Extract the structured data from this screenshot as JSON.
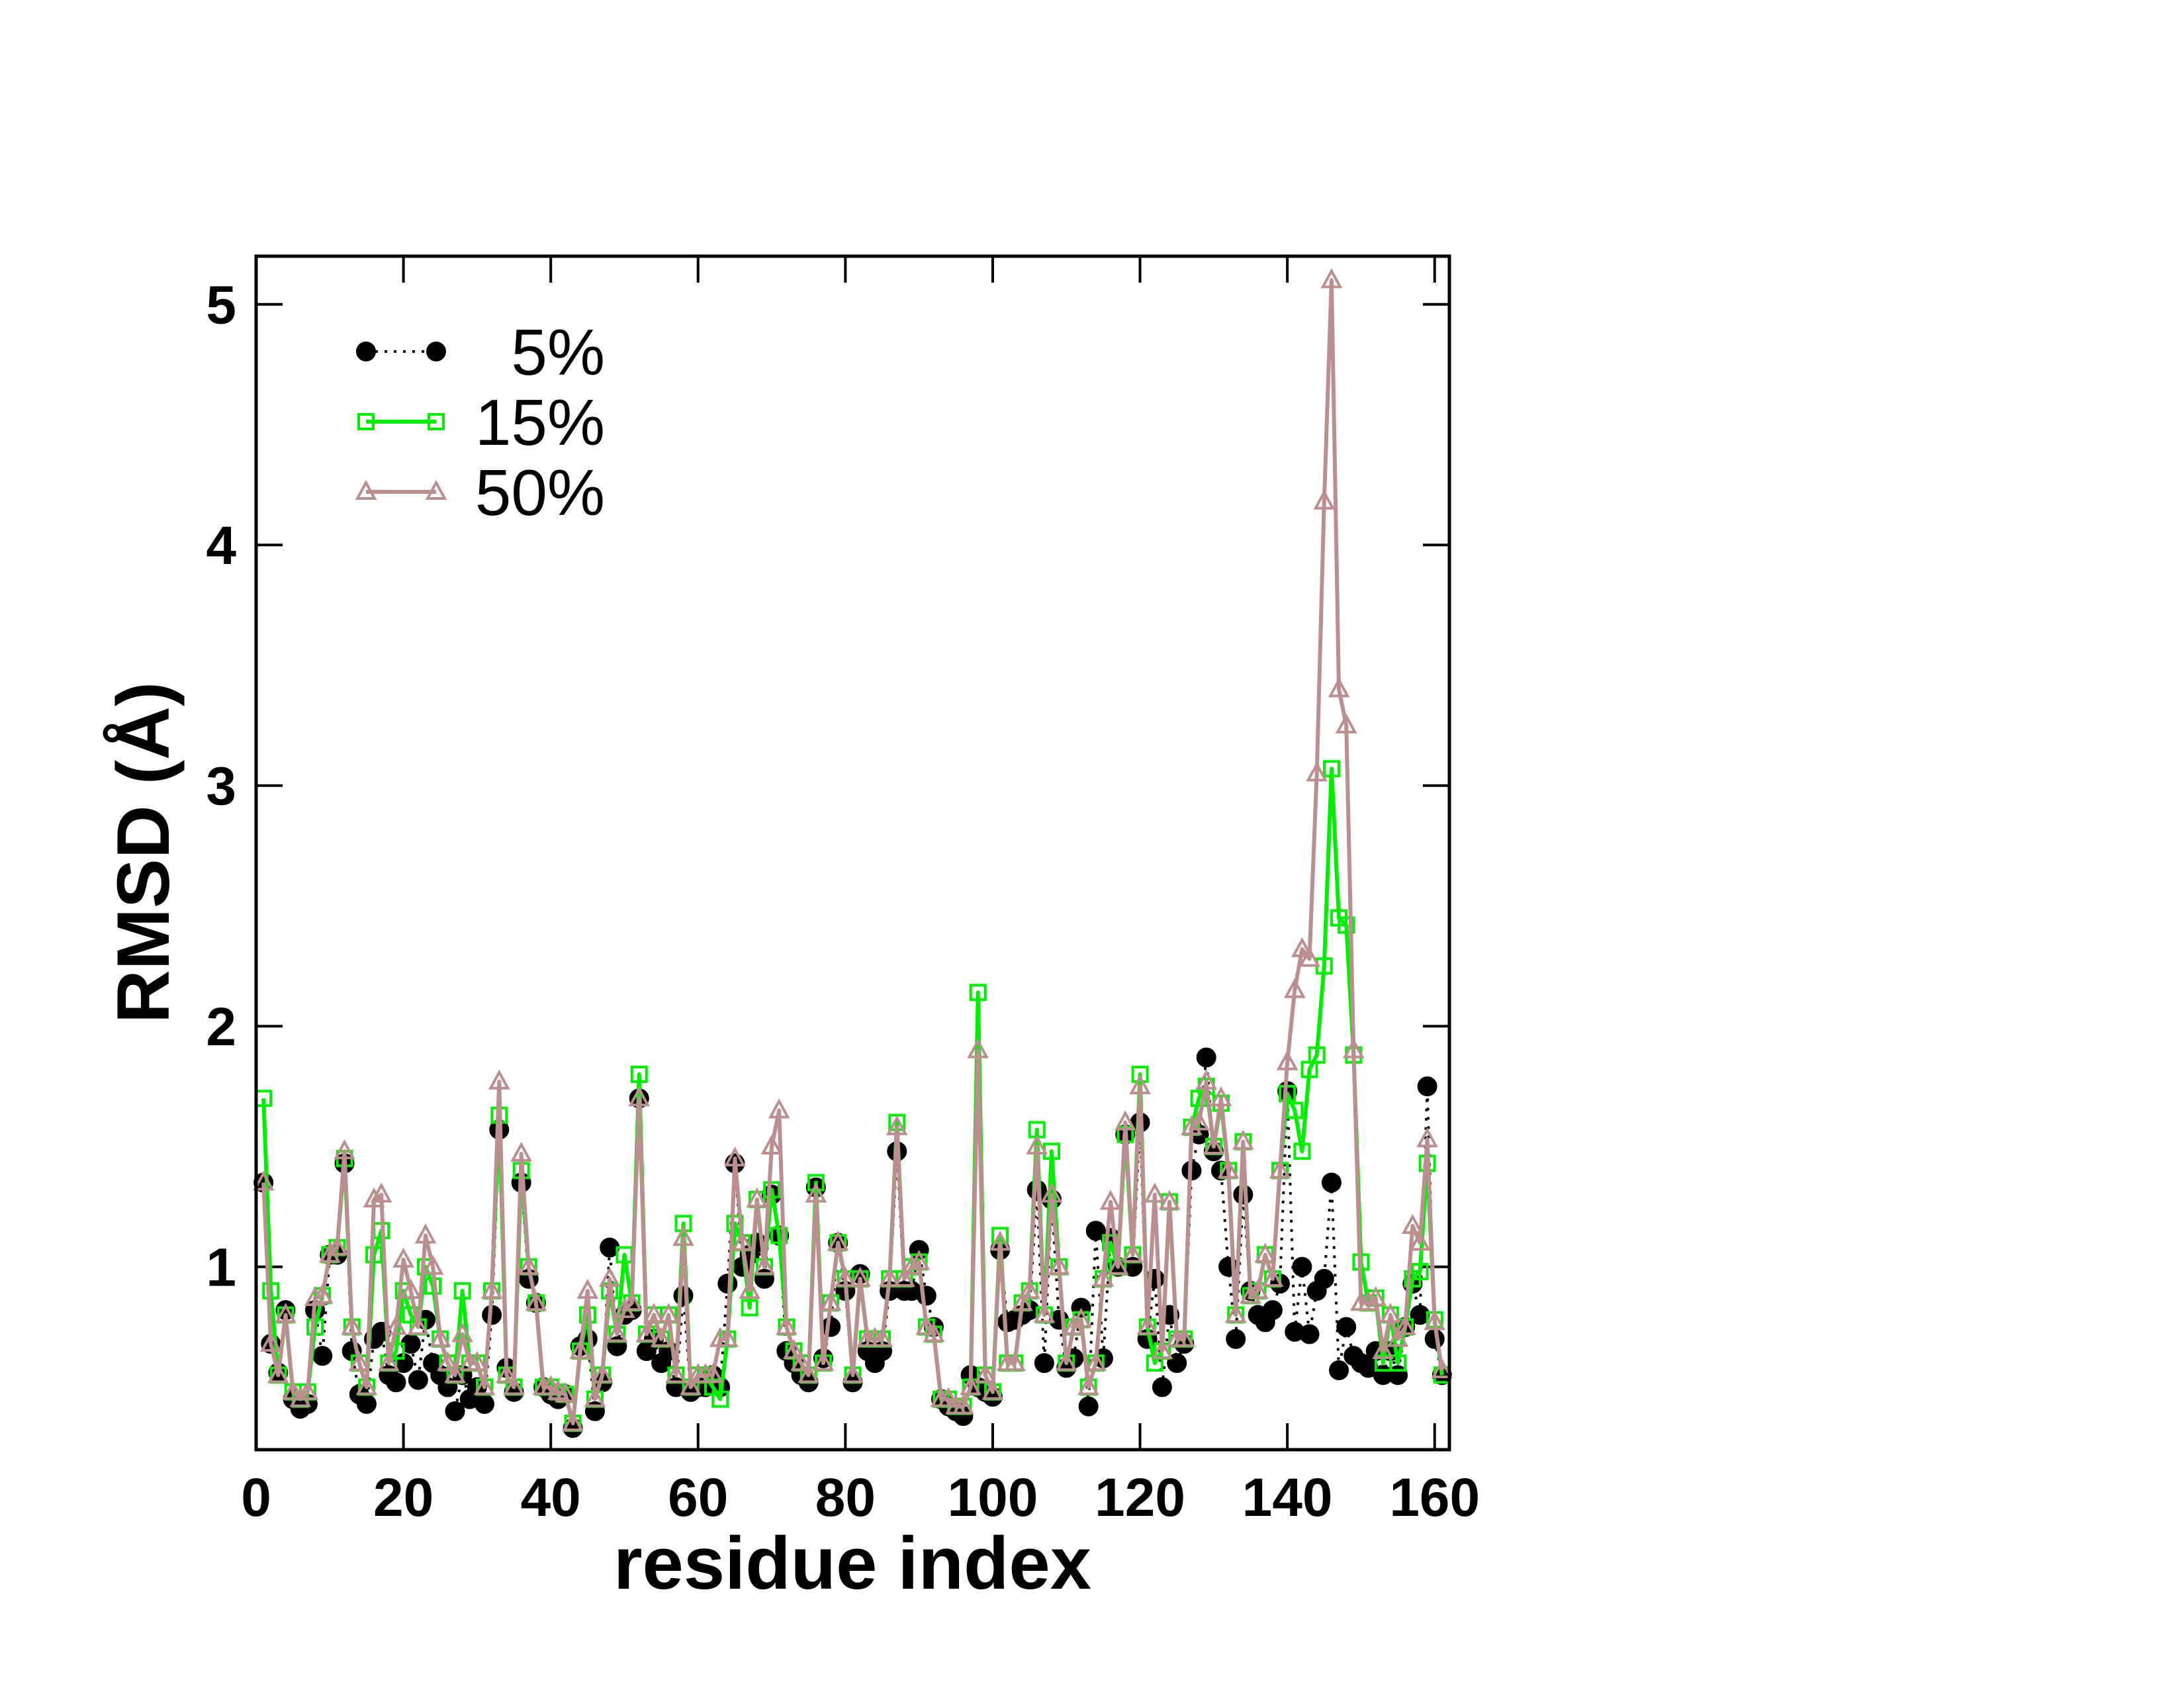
{
  "chart_data": {
    "type": "line",
    "xlabel": "residue index",
    "ylabel": "RMSD (Å)",
    "xlim": [
      0,
      162
    ],
    "ylim": [
      0.24,
      5.2
    ],
    "xticks": [
      0,
      20,
      40,
      60,
      80,
      100,
      120,
      140,
      160
    ],
    "yticks": [
      1,
      2,
      3,
      4,
      5
    ],
    "legend": "upper-left",
    "x": [
      1,
      2,
      3,
      4,
      5,
      6,
      7,
      8,
      9,
      10,
      11,
      12,
      13,
      14,
      15,
      16,
      17,
      18,
      19,
      20,
      21,
      22,
      23,
      24,
      25,
      26,
      27,
      28,
      29,
      30,
      31,
      32,
      33,
      34,
      35,
      36,
      37,
      38,
      39,
      40,
      41,
      42,
      43,
      44,
      45,
      46,
      47,
      48,
      49,
      50,
      51,
      52,
      53,
      54,
      55,
      56,
      57,
      58,
      59,
      60,
      61,
      62,
      63,
      64,
      65,
      66,
      67,
      68,
      69,
      70,
      71,
      72,
      73,
      74,
      75,
      76,
      77,
      78,
      79,
      80,
      81,
      82,
      83,
      84,
      85,
      86,
      87,
      88,
      89,
      90,
      91,
      92,
      93,
      94,
      95,
      96,
      97,
      98,
      99,
      100,
      101,
      102,
      103,
      104,
      105,
      106,
      107,
      108,
      109,
      110,
      111,
      112,
      113,
      114,
      115,
      116,
      117,
      118,
      119,
      120,
      121,
      122,
      123,
      124,
      125,
      126,
      127,
      128,
      129,
      130,
      131,
      132,
      133,
      134,
      135,
      136,
      137,
      138,
      139,
      140,
      141,
      142,
      143,
      144,
      145,
      146,
      147,
      148,
      149,
      150,
      151,
      152,
      153,
      154,
      155,
      156,
      157,
      158,
      159,
      160,
      161
    ],
    "series": [
      {
        "name": "5%",
        "color": "#000000",
        "marker": "circle",
        "linestyle": "dotted",
        "values": [
          1.35,
          0.68,
          0.56,
          0.82,
          0.45,
          0.41,
          0.43,
          0.82,
          0.63,
          1.05,
          1.05,
          1.43,
          0.65,
          0.47,
          0.43,
          0.7,
          0.73,
          0.55,
          0.52,
          0.6,
          0.68,
          0.53,
          0.78,
          0.6,
          0.55,
          0.5,
          0.4,
          0.55,
          0.45,
          0.5,
          0.43,
          0.8,
          1.57,
          0.58,
          0.48,
          1.35,
          0.95,
          0.85,
          0.5,
          0.47,
          0.45,
          0.47,
          0.33,
          0.67,
          0.7,
          0.4,
          0.52,
          1.08,
          0.67,
          0.8,
          0.82,
          1.7,
          0.65,
          0.7,
          0.6,
          0.65,
          0.5,
          0.88,
          0.48,
          0.5,
          0.5,
          0.55,
          0.5,
          0.93,
          1.43,
          1.0,
          1.05,
          1.1,
          0.95,
          1.3,
          1.13,
          0.65,
          0.6,
          0.55,
          0.52,
          1.33,
          0.62,
          0.75,
          1.1,
          0.9,
          0.52,
          0.97,
          0.65,
          0.6,
          0.65,
          0.9,
          1.48,
          0.9,
          0.9,
          1.07,
          0.88,
          0.75,
          0.45,
          0.42,
          0.4,
          0.38,
          0.55,
          0.5,
          0.48,
          0.46,
          1.07,
          0.77,
          0.78,
          0.8,
          0.82,
          1.32,
          0.6,
          1.28,
          0.78,
          0.58,
          0.62,
          0.83,
          0.42,
          1.15,
          0.62,
          1.12,
          1.0,
          1.55,
          1.0,
          1.6,
          0.7,
          0.95,
          0.5,
          0.8,
          0.6,
          0.68,
          1.4,
          1.55,
          1.87,
          1.48,
          1.4,
          1.0,
          0.7,
          1.3,
          0.9,
          0.8,
          0.77,
          0.82,
          0.93,
          1.73,
          0.73,
          1.0,
          0.72,
          0.9,
          0.95,
          1.35,
          0.57,
          0.75,
          0.63,
          0.6,
          0.58,
          0.65,
          0.55,
          0.65,
          0.55,
          0.75,
          0.93,
          0.8,
          1.75,
          0.7,
          0.55
        ]
      },
      {
        "name": "15%",
        "color": "#00ee00",
        "marker": "square",
        "linestyle": "solid",
        "values": [
          1.7,
          0.9,
          0.55,
          0.8,
          0.48,
          0.45,
          0.48,
          0.75,
          0.88,
          1.05,
          1.08,
          1.45,
          0.75,
          0.6,
          0.5,
          1.05,
          1.15,
          0.6,
          0.65,
          0.9,
          0.8,
          0.75,
          1.0,
          0.92,
          0.7,
          0.6,
          0.55,
          0.9,
          0.6,
          0.6,
          0.5,
          0.9,
          1.63,
          0.55,
          0.5,
          1.4,
          1.0,
          0.85,
          0.5,
          0.5,
          0.48,
          0.47,
          0.35,
          0.65,
          0.8,
          0.45,
          0.55,
          0.9,
          0.72,
          1.05,
          0.85,
          1.8,
          0.72,
          0.8,
          0.7,
          0.8,
          0.55,
          1.18,
          0.5,
          0.55,
          0.55,
          0.5,
          0.45,
          0.7,
          1.18,
          1.1,
          0.83,
          1.28,
          1.0,
          1.32,
          1.13,
          0.75,
          0.65,
          0.6,
          0.55,
          1.35,
          0.6,
          0.85,
          1.1,
          0.95,
          0.55,
          0.95,
          0.7,
          0.7,
          0.7,
          0.95,
          1.6,
          0.95,
          1.0,
          1.02,
          0.75,
          0.72,
          0.45,
          0.45,
          0.42,
          0.42,
          0.5,
          2.14,
          0.55,
          0.48,
          1.13,
          0.6,
          0.6,
          0.85,
          0.9,
          1.57,
          0.8,
          1.48,
          1.0,
          0.6,
          0.75,
          0.78,
          0.5,
          0.6,
          0.95,
          1.1,
          1.0,
          1.55,
          1.05,
          1.8,
          0.75,
          0.6,
          0.65,
          1.27,
          0.7,
          0.7,
          1.58,
          1.7,
          1.75,
          1.5,
          1.68,
          1.4,
          0.8,
          1.52,
          0.88,
          0.9,
          1.05,
          0.95,
          1.4,
          1.72,
          1.65,
          1.48,
          1.82,
          1.88,
          2.25,
          3.07,
          2.45,
          2.42,
          1.88,
          1.02,
          0.85,
          0.87,
          0.6,
          0.8,
          0.6,
          0.75,
          0.95,
          0.98,
          1.43,
          0.78,
          0.55
        ]
      },
      {
        "name": "50%",
        "color": "#bc8f8f",
        "marker": "triangle",
        "linestyle": "solid",
        "values": [
          1.35,
          0.68,
          0.55,
          0.8,
          0.48,
          0.45,
          0.48,
          0.87,
          0.88,
          1.05,
          1.08,
          1.48,
          0.75,
          0.6,
          0.5,
          1.28,
          1.3,
          0.6,
          0.75,
          1.03,
          0.9,
          0.75,
          1.13,
          1.0,
          0.7,
          0.6,
          0.55,
          0.72,
          0.6,
          0.6,
          0.5,
          0.9,
          1.77,
          0.55,
          0.5,
          1.47,
          1.0,
          0.85,
          0.5,
          0.5,
          0.48,
          0.47,
          0.35,
          0.65,
          0.9,
          0.45,
          0.55,
          0.95,
          0.72,
          0.82,
          0.85,
          1.7,
          0.72,
          0.8,
          0.7,
          0.8,
          0.55,
          1.12,
          0.5,
          0.55,
          0.55,
          0.55,
          0.7,
          0.7,
          1.45,
          1.1,
          0.9,
          1.28,
          1.0,
          1.5,
          1.65,
          0.75,
          0.65,
          0.6,
          0.55,
          1.3,
          0.6,
          0.85,
          1.1,
          0.95,
          0.55,
          0.95,
          0.7,
          0.7,
          0.7,
          0.95,
          1.58,
          0.95,
          1.0,
          1.02,
          0.75,
          0.72,
          0.45,
          0.45,
          0.42,
          0.42,
          0.5,
          1.9,
          0.55,
          0.48,
          1.1,
          0.6,
          0.6,
          0.85,
          0.9,
          1.5,
          0.8,
          1.3,
          1.0,
          0.6,
          0.75,
          0.78,
          0.5,
          0.6,
          0.95,
          1.27,
          1.0,
          1.6,
          1.05,
          1.75,
          0.75,
          1.3,
          0.65,
          1.27,
          0.7,
          0.7,
          1.58,
          1.6,
          1.77,
          1.5,
          1.7,
          1.4,
          0.8,
          1.52,
          0.88,
          0.9,
          1.05,
          0.95,
          1.4,
          1.85,
          2.15,
          2.32,
          2.28,
          3.05,
          4.18,
          5.1,
          3.4,
          3.25,
          1.9,
          0.85,
          0.85,
          0.87,
          0.65,
          0.8,
          0.7,
          0.75,
          1.17,
          1.1,
          1.53,
          0.77,
          0.57
        ]
      }
    ]
  }
}
